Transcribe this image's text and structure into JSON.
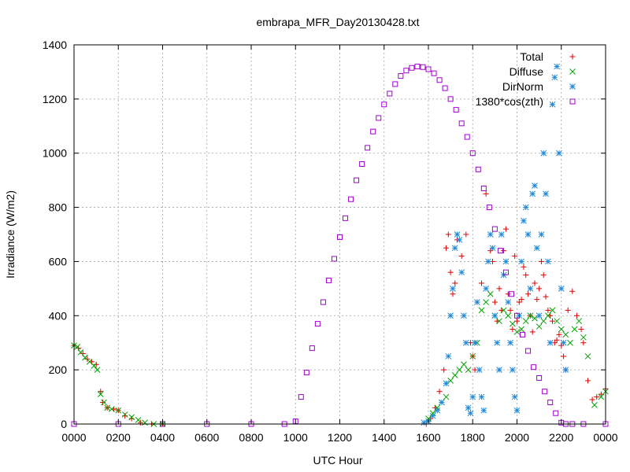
{
  "chart_data": {
    "type": "scatter",
    "title": "embrapa_MFR_Day20130428.txt",
    "xlabel": "UTC Hour",
    "ylabel": "Irradiance (W/m2)",
    "xlim": [
      0,
      24
    ],
    "ylim": [
      0,
      1400
    ],
    "x_ticks": [
      {
        "value": 0,
        "label": "0000"
      },
      {
        "value": 2,
        "label": "0200"
      },
      {
        "value": 4,
        "label": "0400"
      },
      {
        "value": 6,
        "label": "0600"
      },
      {
        "value": 8,
        "label": "0800"
      },
      {
        "value": 10,
        "label": "1000"
      },
      {
        "value": 12,
        "label": "1200"
      },
      {
        "value": 14,
        "label": "1400"
      },
      {
        "value": 16,
        "label": "1600"
      },
      {
        "value": 18,
        "label": "1800"
      },
      {
        "value": 20,
        "label": "2000"
      },
      {
        "value": 22,
        "label": "2200"
      },
      {
        "value": 24,
        "label": "0000"
      }
    ],
    "y_ticks": [
      0,
      200,
      400,
      600,
      800,
      1000,
      1200,
      1400
    ],
    "grid": true,
    "legend_position": "top-right",
    "series": [
      {
        "name": "Total",
        "marker": "plus",
        "color": "#e00000",
        "x": [
          0.0,
          0.2,
          0.4,
          0.6,
          0.8,
          1.0,
          1.2,
          1.3,
          1.5,
          1.8,
          2.0,
          2.3,
          2.6,
          3.0,
          3.5,
          4.0,
          15.9,
          16.1,
          16.3,
          16.5,
          16.7,
          16.8,
          16.9,
          17.0,
          17.1,
          17.2,
          17.3,
          17.5,
          17.7,
          17.9,
          18.0,
          18.1,
          18.2,
          18.4,
          18.6,
          18.8,
          18.9,
          19.0,
          19.1,
          19.2,
          19.3,
          19.4,
          19.5,
          19.6,
          19.7,
          19.8,
          19.9,
          20.0,
          20.1,
          20.2,
          20.3,
          20.4,
          20.5,
          20.6,
          20.7,
          20.8,
          20.9,
          21.0,
          21.1,
          21.2,
          21.3,
          21.4,
          21.5,
          21.6,
          21.7,
          21.8,
          21.9,
          22.0,
          22.1,
          22.2,
          22.3,
          22.5,
          22.7,
          22.9,
          23.0,
          23.2,
          23.4,
          23.6,
          23.8,
          24.0
        ],
        "y": [
          290,
          280,
          260,
          240,
          230,
          220,
          120,
          80,
          60,
          55,
          50,
          30,
          20,
          5,
          0,
          0,
          0,
          20,
          60,
          120,
          200,
          650,
          700,
          560,
          480,
          520,
          680,
          620,
          700,
          300,
          250,
          200,
          450,
          520,
          850,
          640,
          600,
          450,
          380,
          500,
          420,
          640,
          720,
          480,
          420,
          350,
          620,
          380,
          450,
          460,
          580,
          550,
          480,
          400,
          340,
          520,
          460,
          500,
          600,
          550,
          470,
          420,
          400,
          380,
          300,
          310,
          330,
          290,
          250,
          200,
          420,
          490,
          400,
          350,
          300,
          160,
          90,
          100,
          110,
          130
        ]
      },
      {
        "name": "Diffuse",
        "marker": "cross",
        "color": "#00a000",
        "x": [
          0.0,
          0.15,
          0.3,
          0.5,
          0.7,
          0.9,
          1.05,
          1.2,
          1.35,
          1.5,
          1.7,
          2.0,
          2.3,
          2.6,
          2.9,
          3.2,
          3.6,
          4.0,
          16.0,
          16.2,
          16.4,
          16.6,
          16.8,
          17.0,
          17.2,
          17.4,
          17.6,
          17.8,
          18.0,
          18.2,
          18.4,
          18.6,
          18.8,
          19.0,
          19.2,
          19.4,
          19.6,
          19.8,
          20.0,
          20.2,
          20.4,
          20.6,
          20.8,
          21.0,
          21.2,
          21.4,
          21.6,
          21.8,
          22.0,
          22.2,
          22.4,
          22.6,
          22.8,
          23.0,
          23.2,
          23.5,
          23.8,
          24.0
        ],
        "y": [
          290,
          285,
          265,
          245,
          230,
          215,
          200,
          110,
          80,
          60,
          55,
          50,
          35,
          25,
          15,
          5,
          0,
          0,
          20,
          40,
          60,
          80,
          100,
          160,
          180,
          200,
          220,
          200,
          250,
          300,
          420,
          450,
          480,
          400,
          380,
          420,
          400,
          370,
          340,
          350,
          380,
          400,
          390,
          360,
          380,
          400,
          420,
          380,
          350,
          330,
          300,
          350,
          380,
          320,
          250,
          70,
          100,
          120
        ]
      },
      {
        "name": "DirNorm",
        "marker": "star",
        "color": "#1e88d8",
        "x": [
          15.8,
          16.0,
          16.2,
          16.4,
          16.6,
          16.8,
          16.9,
          17.0,
          17.1,
          17.2,
          17.3,
          17.4,
          17.5,
          17.6,
          17.7,
          17.8,
          17.9,
          18.0,
          18.1,
          18.2,
          18.3,
          18.4,
          18.5,
          18.6,
          18.7,
          18.8,
          18.9,
          19.0,
          19.1,
          19.2,
          19.3,
          19.4,
          19.5,
          19.6,
          19.7,
          19.8,
          19.9,
          20.0,
          20.1,
          20.2,
          20.3,
          20.4,
          20.5,
          20.6,
          20.7,
          20.8,
          20.9,
          21.0,
          21.1,
          21.2,
          21.3,
          21.4,
          21.5,
          21.6,
          21.7,
          21.8,
          21.9,
          22.0,
          22.1,
          22.2
        ],
        "y": [
          5,
          10,
          30,
          50,
          80,
          150,
          250,
          400,
          500,
          650,
          700,
          680,
          560,
          400,
          300,
          60,
          40,
          100,
          300,
          450,
          200,
          100,
          50,
          500,
          600,
          700,
          650,
          400,
          300,
          200,
          700,
          550,
          600,
          450,
          300,
          200,
          100,
          50,
          400,
          600,
          750,
          800,
          700,
          500,
          850,
          880,
          650,
          400,
          700,
          1000,
          850,
          600,
          300,
          1180,
          1280,
          1320,
          1000,
          500,
          300,
          200
        ]
      },
      {
        "name": "1380*cos(zth)",
        "marker": "square",
        "color": "#a000d0",
        "x": [
          0,
          2,
          4,
          6,
          8,
          9.5,
          10.0,
          10.25,
          10.5,
          10.75,
          11.0,
          11.25,
          11.5,
          11.75,
          12.0,
          12.25,
          12.5,
          12.75,
          13.0,
          13.25,
          13.5,
          13.75,
          14.0,
          14.25,
          14.5,
          14.75,
          15.0,
          15.25,
          15.5,
          15.75,
          16.0,
          16.25,
          16.5,
          16.75,
          17.0,
          17.25,
          17.5,
          17.75,
          18.0,
          18.25,
          18.5,
          18.75,
          19.0,
          19.25,
          19.5,
          19.75,
          20.0,
          20.25,
          20.5,
          20.75,
          21.0,
          21.25,
          21.5,
          21.75,
          22.0,
          22.2,
          22.5,
          23,
          24
        ],
        "y": [
          0,
          0,
          0,
          0,
          0,
          0,
          10,
          100,
          190,
          280,
          370,
          450,
          530,
          610,
          690,
          760,
          830,
          900,
          960,
          1020,
          1080,
          1130,
          1180,
          1220,
          1255,
          1285,
          1305,
          1315,
          1320,
          1318,
          1310,
          1295,
          1270,
          1240,
          1200,
          1160,
          1110,
          1060,
          1000,
          940,
          870,
          800,
          720,
          640,
          560,
          480,
          400,
          330,
          270,
          210,
          170,
          120,
          80,
          40,
          5,
          0,
          0,
          0,
          0
        ]
      }
    ]
  }
}
